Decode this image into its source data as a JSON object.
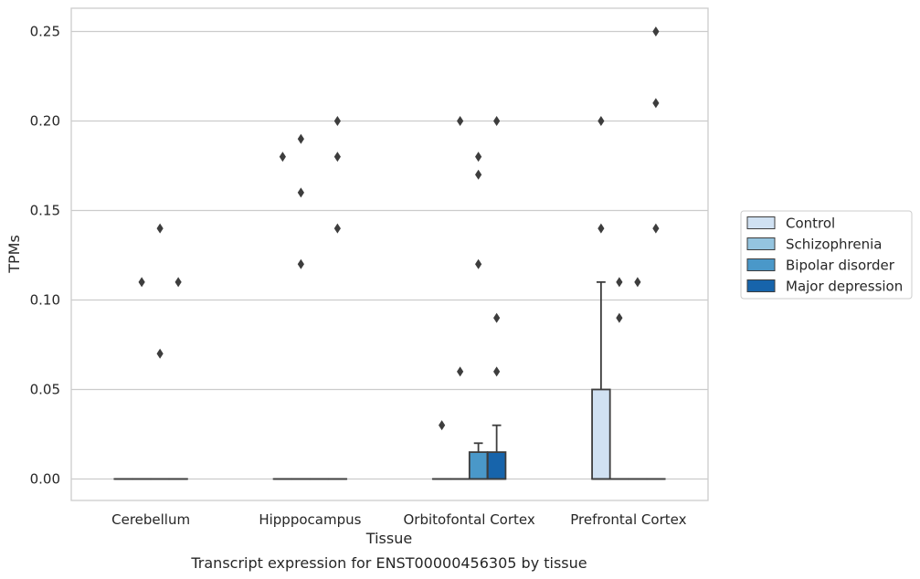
{
  "caption": "Transcript expression for ENST00000456305 by tissue",
  "chart_data": {
    "type": "box",
    "xlabel": "Tissue",
    "ylabel": "TPMs",
    "ylim": [
      -0.012,
      0.263
    ],
    "yticks": [
      "0.00",
      "0.05",
      "0.10",
      "0.15",
      "0.20",
      "0.25"
    ],
    "ytick_values": [
      0,
      0.05,
      0.1,
      0.15,
      0.2,
      0.25
    ],
    "grid": true,
    "legend_position": "right",
    "categories": [
      "Cerebellum",
      "Hipppocampus",
      "Orbitofontal Cortex",
      "Prefrontal Cortex"
    ],
    "series": [
      {
        "name": "Control",
        "color": "#d0e1f2",
        "boxes": [
          {
            "q1": 0,
            "median": 0,
            "q3": 0,
            "whisker_low": 0,
            "whisker_high": 0,
            "outliers": []
          },
          {
            "q1": 0,
            "median": 0,
            "q3": 0,
            "whisker_low": 0,
            "whisker_high": 0,
            "outliers": [
              0.18
            ]
          },
          {
            "q1": 0,
            "median": 0,
            "q3": 0,
            "whisker_low": 0,
            "whisker_high": 0,
            "outliers": [
              0.03
            ]
          },
          {
            "q1": 0,
            "median": 0,
            "q3": 0.05,
            "whisker_low": 0,
            "whisker_high": 0.11,
            "outliers": [
              0.14,
              0.2
            ]
          }
        ]
      },
      {
        "name": "Schizophrenia",
        "color": "#94c4df",
        "boxes": [
          {
            "q1": 0,
            "median": 0,
            "q3": 0,
            "whisker_low": 0,
            "whisker_high": 0,
            "outliers": [
              0.11
            ]
          },
          {
            "q1": 0,
            "median": 0,
            "q3": 0,
            "whisker_low": 0,
            "whisker_high": 0,
            "outliers": [
              0.12,
              0.16,
              0.19
            ]
          },
          {
            "q1": 0,
            "median": 0,
            "q3": 0,
            "whisker_low": 0,
            "whisker_high": 0,
            "outliers": [
              0.06,
              0.2
            ]
          },
          {
            "q1": 0,
            "median": 0,
            "q3": 0,
            "whisker_low": 0,
            "whisker_high": 0,
            "outliers": [
              0.09,
              0.11
            ]
          }
        ]
      },
      {
        "name": "Bipolar disorder",
        "color": "#4a98c9",
        "boxes": [
          {
            "q1": 0,
            "median": 0,
            "q3": 0,
            "whisker_low": 0,
            "whisker_high": 0,
            "outliers": [
              0.07,
              0.14
            ]
          },
          {
            "q1": 0,
            "median": 0,
            "q3": 0,
            "whisker_low": 0,
            "whisker_high": 0,
            "outliers": []
          },
          {
            "q1": 0,
            "median": 0,
            "q3": 0.015,
            "whisker_low": 0,
            "whisker_high": 0.02,
            "outliers": [
              0.12,
              0.17,
              0.18
            ]
          },
          {
            "q1": 0,
            "median": 0,
            "q3": 0,
            "whisker_low": 0,
            "whisker_high": 0,
            "outliers": [
              0.11
            ]
          }
        ]
      },
      {
        "name": "Major depression",
        "color": "#1764ab",
        "boxes": [
          {
            "q1": 0,
            "median": 0,
            "q3": 0,
            "whisker_low": 0,
            "whisker_high": 0,
            "outliers": [
              0.11
            ]
          },
          {
            "q1": 0,
            "median": 0,
            "q3": 0,
            "whisker_low": 0,
            "whisker_high": 0,
            "outliers": [
              0.14,
              0.18,
              0.2
            ]
          },
          {
            "q1": 0,
            "median": 0,
            "q3": 0.015,
            "whisker_low": 0,
            "whisker_high": 0.03,
            "outliers": [
              0.06,
              0.09,
              0.2
            ]
          },
          {
            "q1": 0,
            "median": 0,
            "q3": 0,
            "whisker_low": 0,
            "whisker_high": 0,
            "outliers": [
              0.14,
              0.21,
              0.25
            ]
          }
        ]
      }
    ]
  }
}
